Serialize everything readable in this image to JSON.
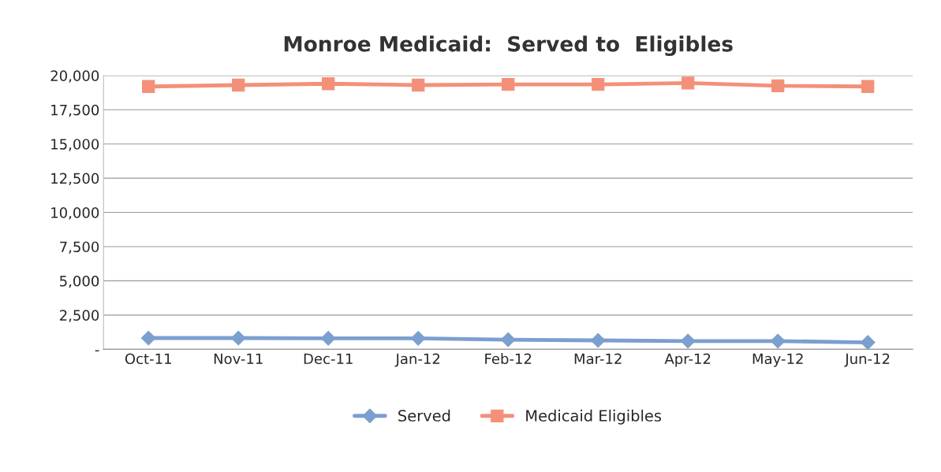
{
  "chart_data": {
    "type": "line",
    "title": "Monroe Medicaid:  Served to  Eligibles",
    "categories": [
      "Oct-11",
      "Nov-11",
      "Dec-11",
      "Jan-12",
      "Feb-12",
      "Mar-12",
      "Apr-12",
      "May-12",
      "Jun-12"
    ],
    "series": [
      {
        "name": "Served",
        "color": "#7b9fcf",
        "marker": "diamond",
        "values": [
          820,
          820,
          800,
          800,
          700,
          650,
          600,
          600,
          500
        ]
      },
      {
        "name": "Medicaid Eligibles",
        "color": "#f4907a",
        "marker": "square",
        "values": [
          19200,
          19300,
          19400,
          19300,
          19350,
          19350,
          19450,
          19250,
          19200
        ]
      }
    ],
    "ylim": [
      0,
      20000
    ],
    "yticks": [
      {
        "value": 0,
        "label": "-"
      },
      {
        "value": 2500,
        "label": "2,500"
      },
      {
        "value": 5000,
        "label": "5,000"
      },
      {
        "value": 7500,
        "label": "7,500"
      },
      {
        "value": 10000,
        "label": "10,000"
      },
      {
        "value": 12500,
        "label": "12,500"
      },
      {
        "value": 15000,
        "label": "15,000"
      },
      {
        "value": 17500,
        "label": "17,500"
      },
      {
        "value": 20000,
        "label": "20,000"
      }
    ],
    "grid": "y",
    "legend": "bottom"
  }
}
